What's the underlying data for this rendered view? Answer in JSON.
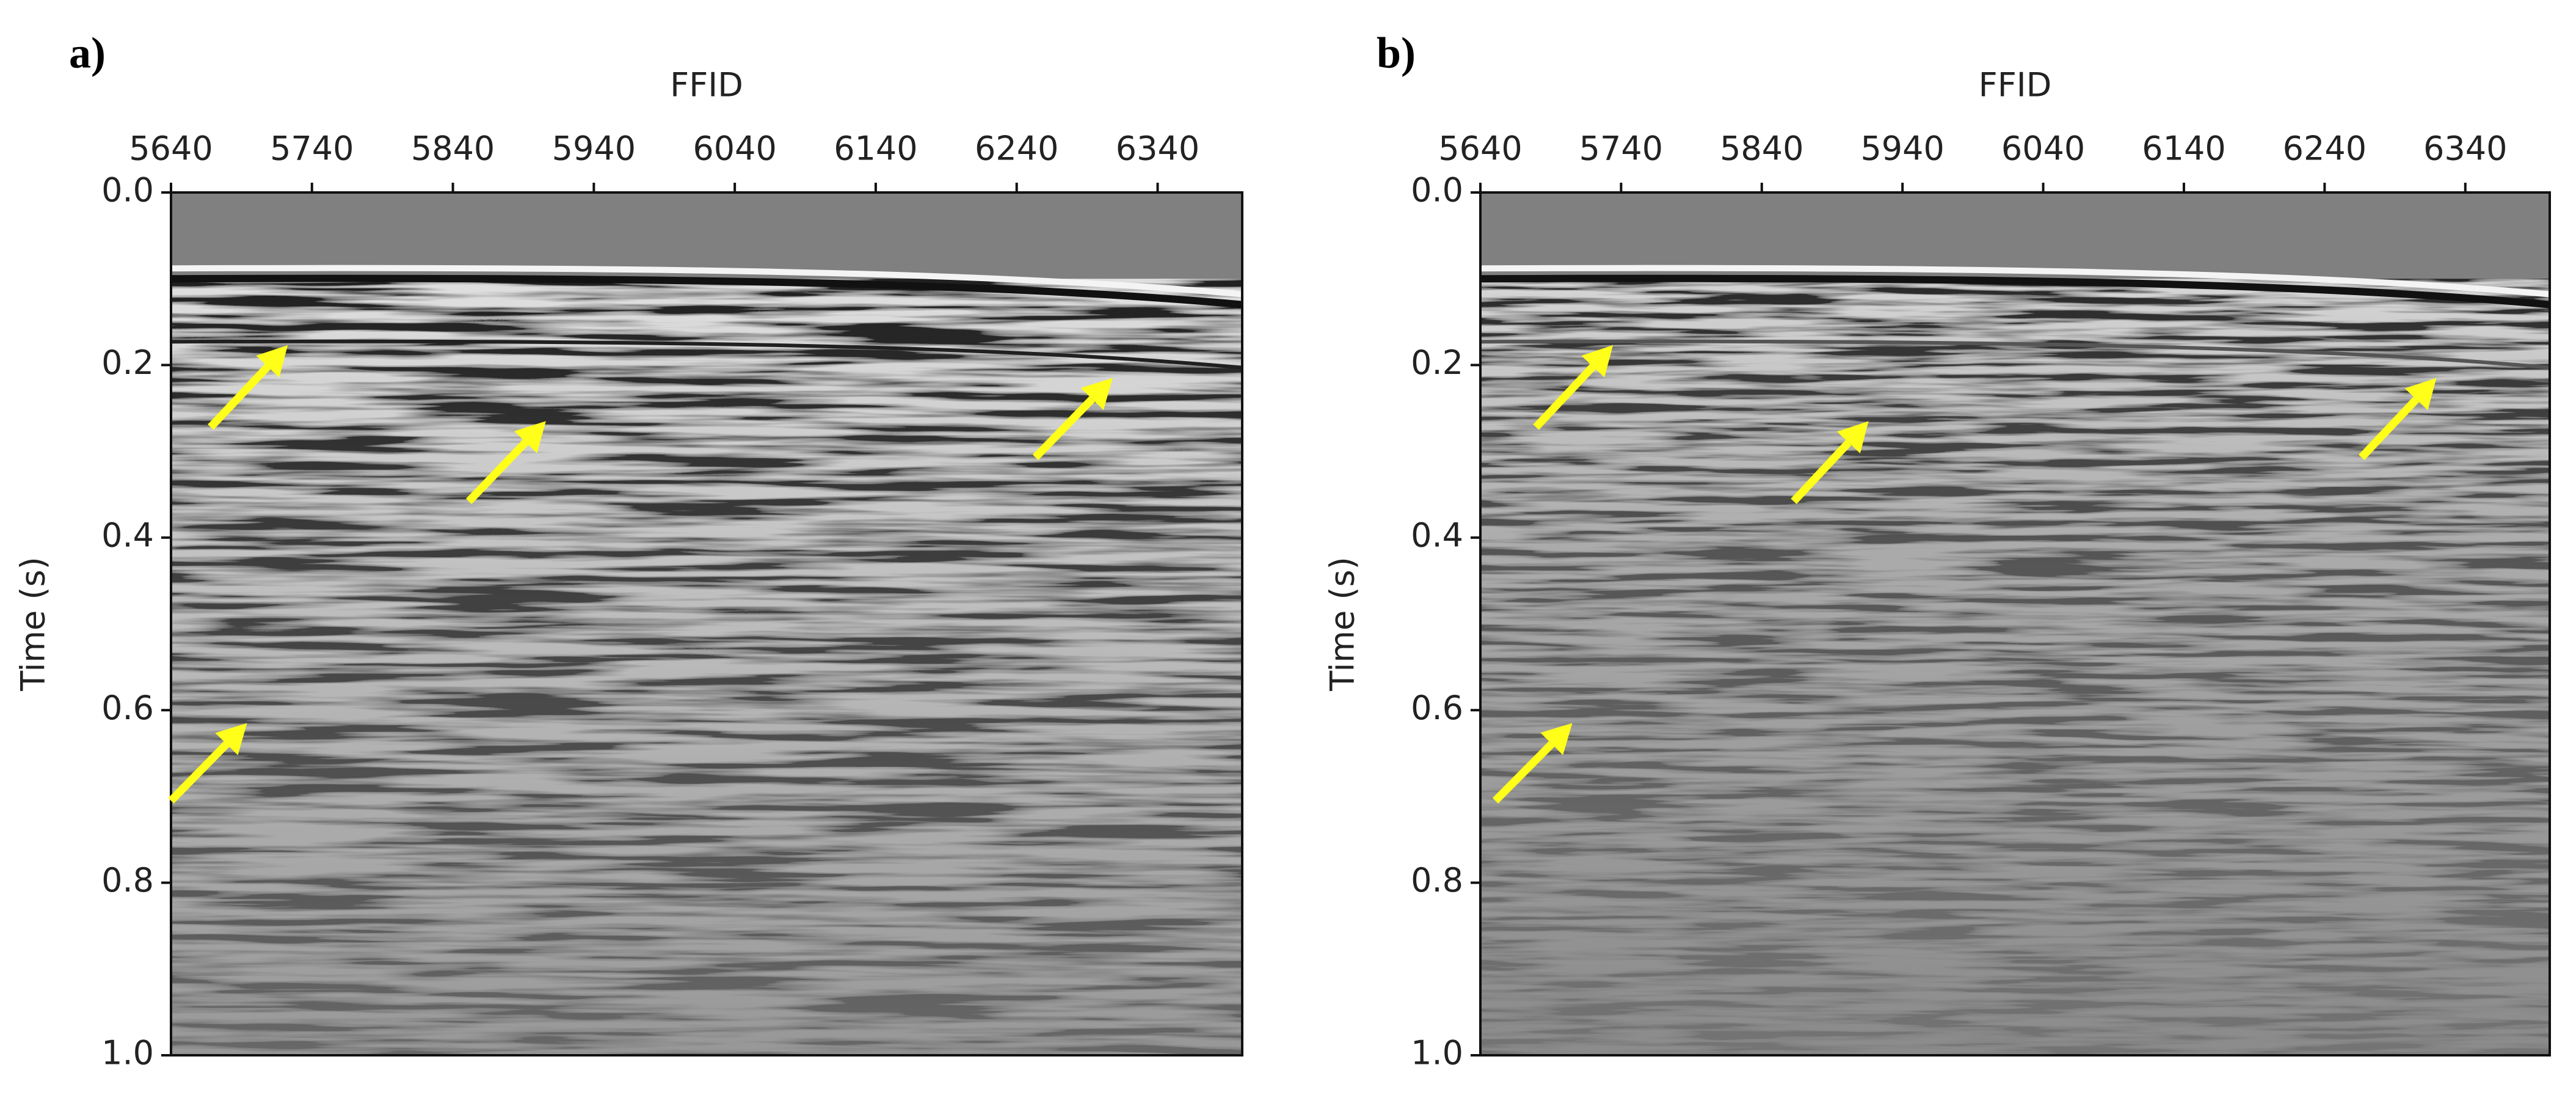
{
  "chart_data": [
    {
      "type": "seismic",
      "panel_label": "a)",
      "xlabel": "FFID",
      "ylabel": "Time (s)",
      "xlim": [
        5640,
        6400
      ],
      "xticks": [
        5640,
        5740,
        5840,
        5940,
        6040,
        6140,
        6240,
        6340
      ],
      "ylim": [
        1.0,
        0.0
      ],
      "yticks": [
        {
          "value": 0,
          "label": "0.0"
        },
        0.2,
        0.4,
        0.6,
        0.8,
        {
          "value": 1,
          "label": "1.0"
        }
      ]
    },
    {
      "type": "seismic",
      "panel_label": "b)",
      "xlabel": "FFID",
      "ylabel": "Time (s)",
      "xlim": [
        5640,
        6400
      ],
      "xticks": [
        5640,
        5740,
        5840,
        5940,
        6040,
        6140,
        6240,
        6340
      ],
      "ylim": [
        1.0,
        0.0
      ],
      "yticks": [
        {
          "value": 0,
          "label": "0.0"
        },
        0.2,
        0.4,
        0.6,
        0.8,
        {
          "value": 1,
          "label": "1.0"
        }
      ]
    }
  ]
}
